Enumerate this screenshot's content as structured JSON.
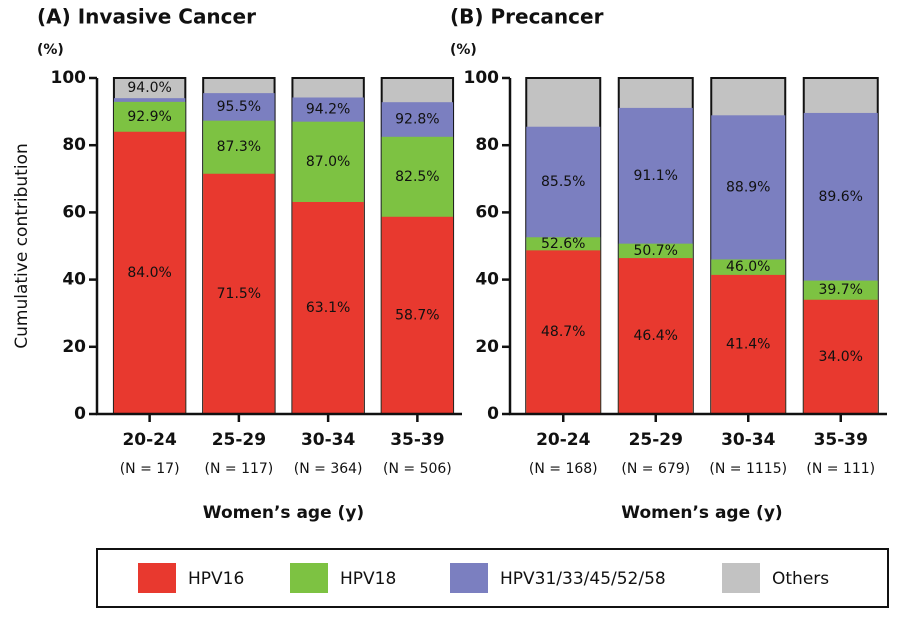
{
  "chart_data": [
    {
      "type": "bar",
      "title": "(A) Invasive Cancer",
      "unit_label": "(%)",
      "ylabel": "Cumulative contribution",
      "xlabel": "Women’s age (y)",
      "categories": [
        "20-24",
        "25-29",
        "30-34",
        "35-39"
      ],
      "n_labels": [
        "(N = 17)",
        "(N = 117)",
        "(N = 364)",
        "(N = 506)"
      ],
      "ylim": [
        0,
        100
      ],
      "yticks": [
        0,
        20,
        40,
        60,
        80,
        100
      ],
      "series": [
        {
          "name": "HPV16",
          "color": "#e8392f",
          "values": [
            84.0,
            71.5,
            63.1,
            58.7
          ],
          "value_labels": [
            "84.0%",
            "71.5%",
            "63.1%",
            "58.7%"
          ]
        },
        {
          "name": "HPV18",
          "color": "#7dc242",
          "values": [
            92.9,
            87.3,
            87.0,
            82.5
          ],
          "value_labels": [
            "92.9%",
            "87.3%",
            "87.0%",
            "82.5%"
          ]
        },
        {
          "name": "HPV31/33/45/52/58",
          "color": "#7b7fc0",
          "values": [
            94.0,
            95.5,
            94.2,
            92.8
          ],
          "value_labels": [
            "94.0%",
            "95.5%",
            "94.2%",
            "92.8%"
          ]
        },
        {
          "name": "Others",
          "color": "#c2c2c2",
          "values": [
            100,
            100,
            100,
            100
          ]
        }
      ]
    },
    {
      "type": "bar",
      "title": "(B) Precancer",
      "unit_label": "(%)",
      "xlabel": "Women’s age (y)",
      "categories": [
        "20-24",
        "25-29",
        "30-34",
        "35-39"
      ],
      "n_labels": [
        "(N = 168)",
        "(N = 679)",
        "(N = 1115)",
        "(N = 111)"
      ],
      "ylim": [
        0,
        100
      ],
      "yticks": [
        0,
        20,
        40,
        60,
        80,
        100
      ],
      "series": [
        {
          "color": "#e8392f",
          "values": [
            48.7,
            46.4,
            41.4,
            34.0
          ],
          "value_labels": [
            "48.7%",
            "46.4%",
            "41.4%",
            "34.0%"
          ]
        },
        {
          "color": "#7dc242",
          "values": [
            52.6,
            50.7,
            46.0,
            39.7
          ],
          "value_labels": [
            "52.6%",
            "50.7%",
            "46.0%",
            "39.7%"
          ]
        },
        {
          "color": "#7b7fc0",
          "values": [
            85.5,
            91.1,
            88.9,
            89.6
          ],
          "value_labels": [
            "85.5%",
            "91.1%",
            "88.9%",
            "89.6%"
          ]
        },
        {
          "color": "#c2c2c2",
          "values": [
            100,
            100,
            100,
            100
          ]
        }
      ]
    }
  ]
}
